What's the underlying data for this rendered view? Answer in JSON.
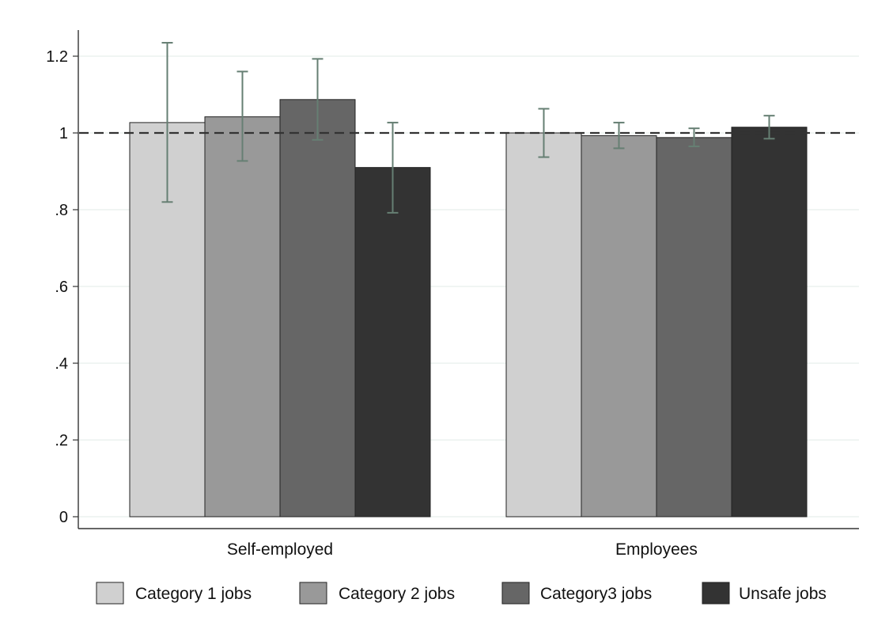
{
  "chart_data": {
    "type": "bar",
    "categories": [
      "Self-employed",
      "Employees"
    ],
    "series": [
      {
        "name": "Category 1 jobs",
        "color": "#d0d0d0",
        "values": [
          1.027,
          1.0
        ],
        "ci_low": [
          0.82,
          0.937
        ],
        "ci_high": [
          1.235,
          1.063
        ]
      },
      {
        "name": "Category 2 jobs",
        "color": "#999999",
        "values": [
          1.042,
          0.993
        ],
        "ci_low": [
          0.927,
          0.96
        ],
        "ci_high": [
          1.16,
          1.027
        ]
      },
      {
        "name": "Category3 jobs",
        "color": "#666666",
        "values": [
          1.087,
          0.988
        ],
        "ci_low": [
          0.982,
          0.965
        ],
        "ci_high": [
          1.193,
          1.012
        ]
      },
      {
        "name": "Unsafe jobs",
        "color": "#333333",
        "values": [
          0.91,
          1.015
        ],
        "ci_low": [
          0.792,
          0.985
        ],
        "ci_high": [
          1.027,
          1.045
        ]
      }
    ],
    "yticks": [
      {
        "value": 0,
        "label": "0"
      },
      {
        "value": 0.2,
        "label": ".2"
      },
      {
        "value": 0.4,
        "label": ".4"
      },
      {
        "value": 0.6,
        "label": ".6"
      },
      {
        "value": 0.8,
        "label": ".8"
      },
      {
        "value": 1.0,
        "label": "1"
      },
      {
        "value": 1.2,
        "label": "1.2"
      }
    ],
    "ylim": [
      0,
      1.27
    ],
    "reference_line": 1.0,
    "grid": true,
    "legend_position": "bottom",
    "title": "",
    "xlabel": "",
    "ylabel": "",
    "colors": {
      "errorbar": "#667f73",
      "grid": "#e6efec",
      "refline": "#333333"
    }
  }
}
